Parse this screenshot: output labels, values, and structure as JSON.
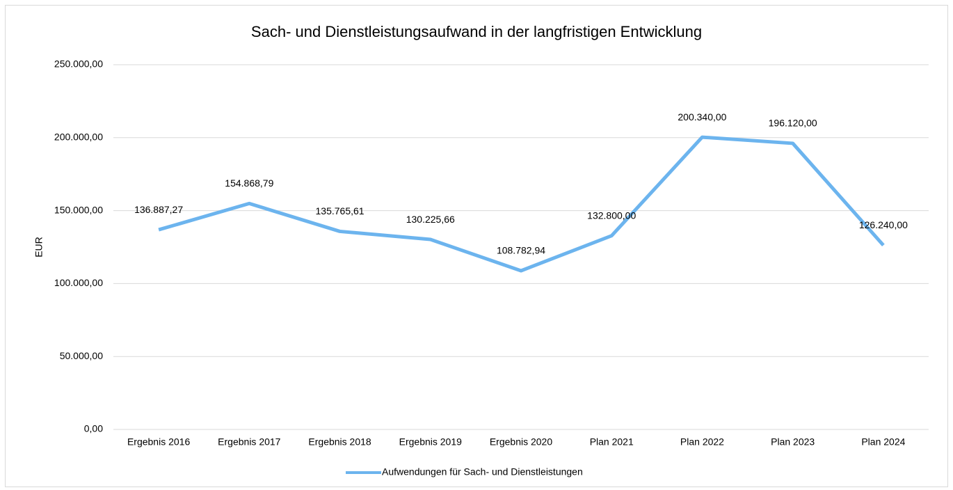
{
  "chart_data": {
    "type": "line",
    "title": "Sach- und Dienstleistungsaufwand in der langfristigen Entwicklung",
    "y_label": "EUR",
    "categories": [
      "Ergebnis 2016",
      "Ergebnis 2017",
      "Ergebnis 2018",
      "Ergebnis 2019",
      "Ergebnis 2020",
      "Plan 2021",
      "Plan 2022",
      "Plan 2023",
      "Plan 2024"
    ],
    "series": [
      {
        "name": "Aufwendungen für Sach- und Dienstleistungen",
        "color": "#6cb4ee",
        "values": [
          136887.27,
          154868.79,
          135765.61,
          130225.66,
          108782.94,
          132800,
          200340,
          196120,
          126240
        ],
        "value_labels": [
          "136.887,27",
          "154.868,79",
          "135.765,61",
          "130.225,66",
          "108.782,94",
          "132.800,00",
          "200.340,00",
          "196.120,00",
          "126.240,00"
        ]
      }
    ],
    "ylim": [
      0,
      250000
    ],
    "yticks": [
      {
        "value": 0,
        "label": "0,00"
      },
      {
        "value": 50000,
        "label": "50.000,00"
      },
      {
        "value": 100000,
        "label": "100.000,00"
      },
      {
        "value": 150000,
        "label": "150.000,00"
      },
      {
        "value": 200000,
        "label": "200.000,00"
      },
      {
        "value": 250000,
        "label": "250.000,00"
      }
    ],
    "grid": true,
    "legend": "bottom"
  }
}
